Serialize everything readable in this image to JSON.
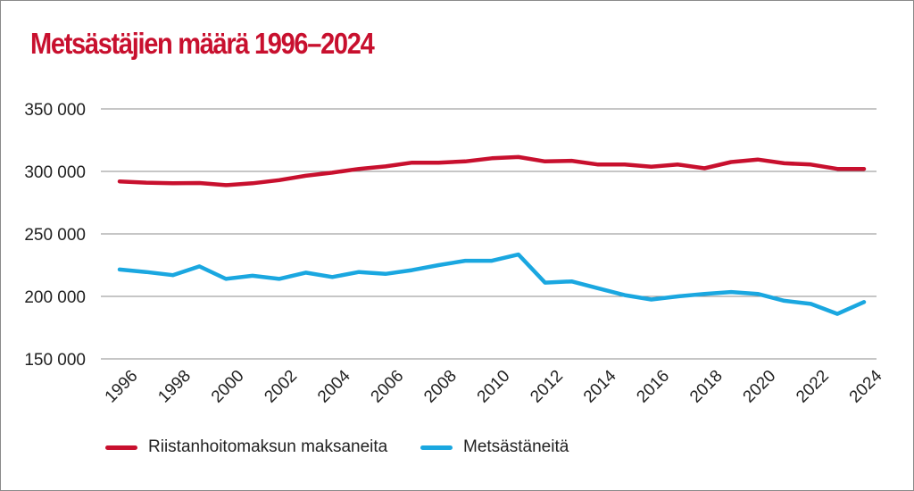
{
  "title": "Metsästäjien määrä 1996–2024",
  "colors": {
    "series1": "#c8102e",
    "series2": "#1aa7e0",
    "grid": "#8c8c8c",
    "title": "#c8102e"
  },
  "chart_data": {
    "type": "line",
    "title": "Metsästäjien määrä 1996–2024",
    "xlabel": "",
    "ylabel": "",
    "ylim": [
      150000,
      350000
    ],
    "yticks": [
      150000,
      200000,
      250000,
      300000,
      350000
    ],
    "ytick_labels": [
      "150 000",
      "200 000",
      "250 000",
      "300 000",
      "350 000"
    ],
    "x": [
      1996,
      1997,
      1998,
      1999,
      2000,
      2001,
      2002,
      2003,
      2004,
      2005,
      2006,
      2007,
      2008,
      2009,
      2010,
      2011,
      2012,
      2013,
      2014,
      2015,
      2016,
      2017,
      2018,
      2019,
      2020,
      2021,
      2022,
      2023,
      2024
    ],
    "xtick_labels": [
      "1996",
      "1998",
      "2000",
      "2002",
      "2004",
      "2006",
      "2008",
      "2010",
      "2012",
      "2014",
      "2016",
      "2018",
      "2020",
      "2022",
      "2024"
    ],
    "series": [
      {
        "name": "Riistanhoitomaksun maksaneita",
        "values": [
          292000,
          291000,
          290500,
          290700,
          289000,
          290500,
          293000,
          296500,
          299000,
          302000,
          304000,
          307000,
          307000,
          308000,
          310500,
          311500,
          308000,
          308500,
          305500,
          305500,
          303800,
          305500,
          302500,
          307500,
          309500,
          306500,
          305500,
          302000,
          302000
        ]
      },
      {
        "name": "Metsästäneitä",
        "values": [
          221500,
          219500,
          217000,
          224000,
          214000,
          216500,
          214000,
          219000,
          215500,
          219500,
          218000,
          221000,
          225000,
          228500,
          228500,
          233500,
          211000,
          212000,
          206500,
          201000,
          197500,
          200000,
          202000,
          203500,
          202000,
          196500,
          194000,
          186000,
          195500
        ]
      }
    ]
  },
  "legend": [
    {
      "label": "Riistanhoitomaksun maksaneita"
    },
    {
      "label": "Metsästäneitä"
    }
  ]
}
